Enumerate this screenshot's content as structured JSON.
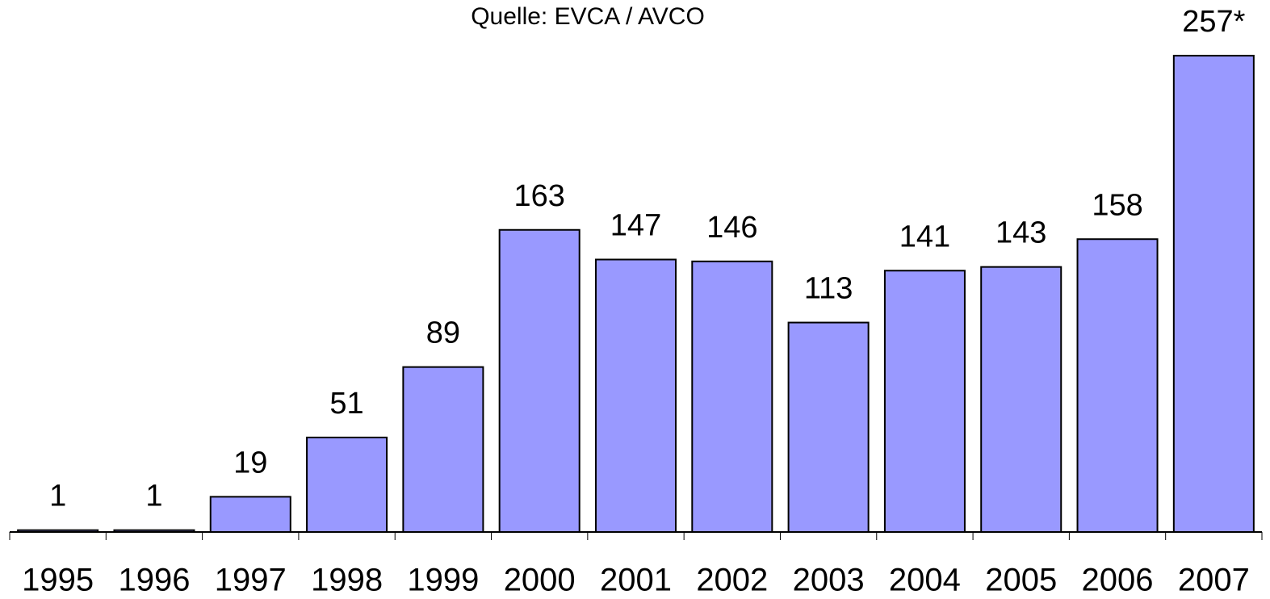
{
  "chart_data": {
    "type": "bar",
    "subtitle": "Quelle: EVCA / AVCO",
    "categories": [
      "1995",
      "1996",
      "1997",
      "1998",
      "1999",
      "2000",
      "2001",
      "2002",
      "2003",
      "2004",
      "2005",
      "2006",
      "2007"
    ],
    "values": [
      1,
      1,
      19,
      51,
      89,
      163,
      147,
      146,
      113,
      141,
      143,
      158,
      257
    ],
    "value_labels": [
      "1",
      "1",
      "19",
      "51",
      "89",
      "163",
      "147",
      "146",
      "113",
      "141",
      "143",
      "158",
      "257*"
    ],
    "color": "#9999ff"
  }
}
